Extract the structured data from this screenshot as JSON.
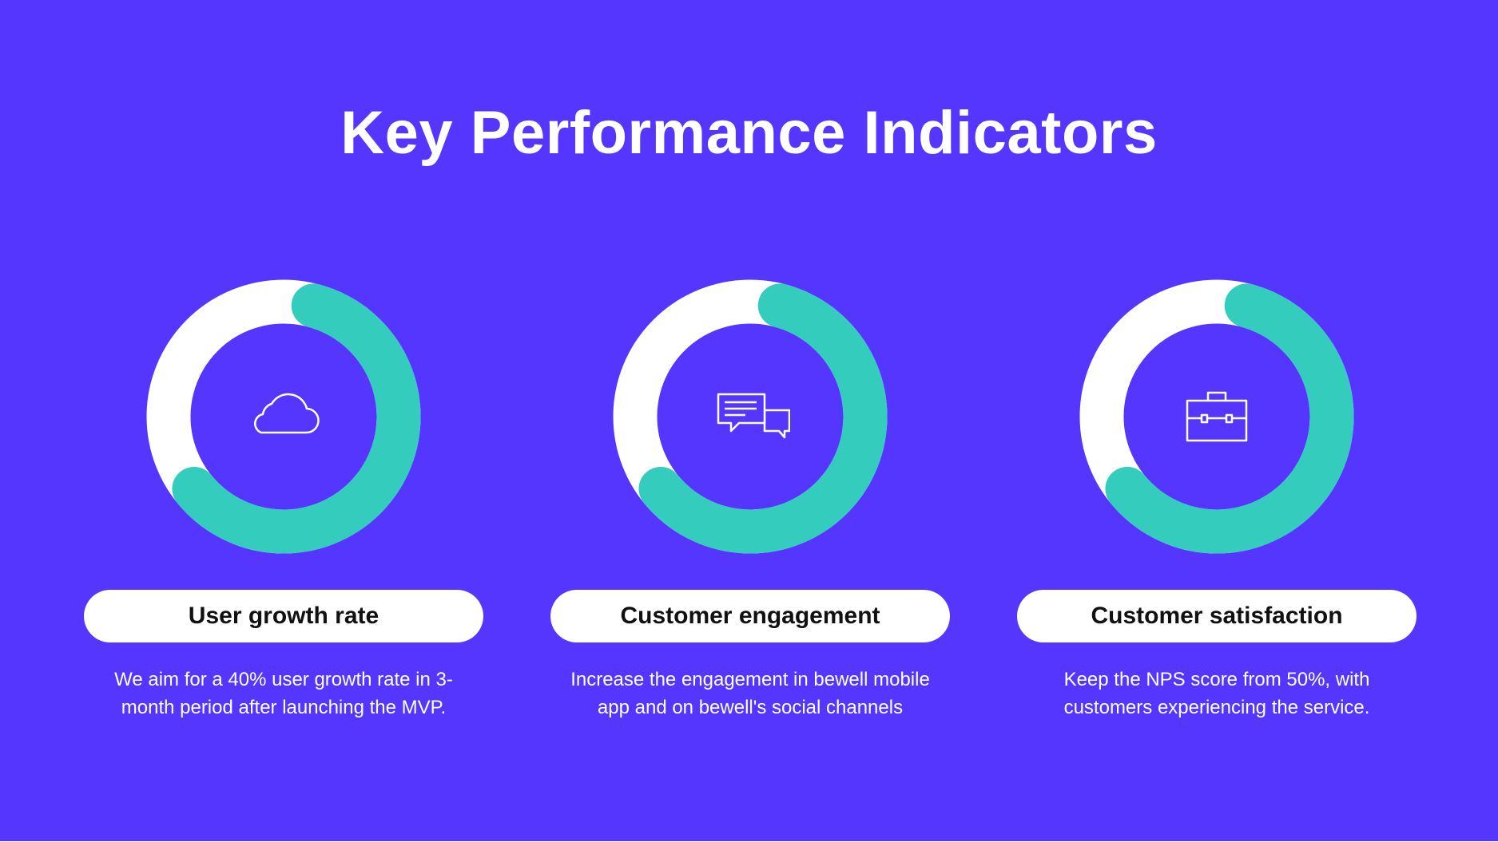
{
  "slide": {
    "title": "Key Performance Indicators",
    "colors": {
      "background": "#5436fe",
      "ring_track": "#ffffff",
      "ring_progress": "#33ccbd",
      "pill": "#ffffff",
      "pill_text": "#111111"
    }
  },
  "kpis": [
    {
      "label": "User growth rate",
      "description": "We aim for a 40% user growth rate in 3-month period after launching the MVP.",
      "icon": "cloud-icon",
      "progress": 0.6
    },
    {
      "label": "Customer engagement",
      "description": "Increase the engagement in bewell mobile app and on bewell's social channels",
      "icon": "chat-bubbles-icon",
      "progress": 0.6
    },
    {
      "label": "Customer satisfaction",
      "description": "Keep the NPS score from 50%, with customers experiencing the service.",
      "icon": "briefcase-icon",
      "progress": 0.6
    }
  ]
}
